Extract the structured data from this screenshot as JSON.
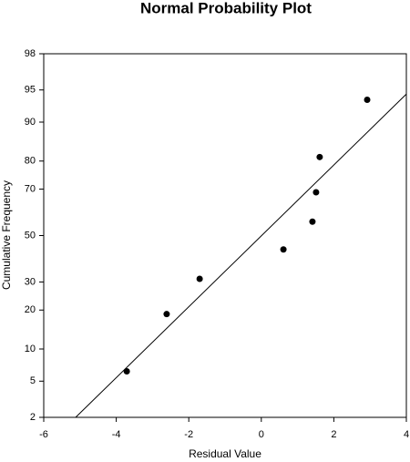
{
  "chart_data": {
    "type": "scatter",
    "title": "Normal Probability Plot",
    "x_label": "Residual Value",
    "y_label": "Cumulative Frequency",
    "y_scale": "probability",
    "grid": false,
    "color": "#000000",
    "x": [
      -3.71,
      -2.61,
      -1.7,
      0.61,
      1.41,
      1.51,
      1.61,
      2.92
    ],
    "values": [
      6.25,
      18.75,
      31.25,
      43.75,
      56.25,
      68.75,
      81.25,
      93.75
    ],
    "fit_line": {
      "x": [
        -5.12,
        4
      ],
      "values": [
        2,
        94.5
      ]
    },
    "xlim": [
      -6,
      4
    ],
    "xticks": [
      -6,
      -4,
      -2,
      0,
      2,
      4
    ],
    "ylim": [
      2,
      98
    ],
    "yticks": [
      2,
      5,
      10,
      20,
      30,
      50,
      70,
      80,
      90,
      95,
      98
    ]
  }
}
